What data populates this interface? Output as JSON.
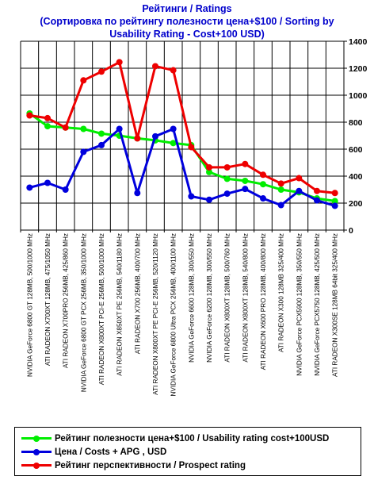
{
  "title": {
    "line1": "Рейтинги / Ratings",
    "line2": "(Сортировка по рейтингу полезности цена+$100 / Sorting by",
    "line3": "Usability Rating - Cost+100 USD)"
  },
  "chart_data": {
    "type": "line",
    "title": "Рейтинги / Ratings (Сортировка по рейтингу полезности цена+$100 / Sorting by Usability Rating - Cost+100 USD)",
    "ylim": [
      0,
      1400
    ],
    "yticks": [
      0,
      200,
      400,
      600,
      800,
      1000,
      1200,
      1400
    ],
    "y_axis_side": "right",
    "grid": true,
    "legend_position": "bottom",
    "categories": [
      "NVIDIA GeForce 6800 GT 128MB, 500/1000 MHz",
      "ATI RADEON X700XT 128MB, 475/1050 MHz",
      "ATI RADEON X700PRO 256MB, 425/860 MHz",
      "NVIDIA GeForce 6800 GT PCX 256MB, 350/1000 MHz",
      "ATI RADEON X800XT PCI-E 256MB, 500/1000 MHz",
      "ATI RADEON X850XT PE 256MB, 540/1180 MHz",
      "ATI RADEON X700 256MB, 400/700 MHz",
      "ATI RADEON X800XT PE PCI-E 256MB, 520/1120 MHz",
      "NVIDIA GeForce 6800 Ultra PCX 256MB, 400/1100 MHz",
      "NVIDIA GeForce 6600 128MB, 300/550 MHz",
      "NVIDIA GeForce 6200 128MB, 300/550 MHz",
      "ATI RADEON X800XT 128MB, 500/760 MHz",
      "ATI RADEON X800XT 128MB, 540/800 MHz",
      "ATI RADEON X600 PRO 128MB, 400/800 MHz",
      "ATI RADEON X300 128MB 325/400 MHz",
      "NVIDIA GeForce PCX5900 128MB, 350/550 MHz",
      "NVIDIA GeForce PCX5750 128MB, 425/500 MHz",
      "ATI RADEON X300SE 128MB 64bit 325/400 MHz"
    ],
    "series": [
      {
        "name": "Рейтинг полезности цена+$100 / Usability rating cost+100USD",
        "color": "#00ee00",
        "values": [
          865,
          770,
          760,
          750,
          715,
          700,
          680,
          665,
          645,
          630,
          430,
          380,
          365,
          340,
          300,
          280,
          235,
          215
        ]
      },
      {
        "name": "Цена / Costs + APG , USD",
        "color": "#0000dd",
        "values": [
          315,
          350,
          300,
          580,
          630,
          750,
          275,
          695,
          750,
          250,
          225,
          270,
          305,
          235,
          185,
          290,
          220,
          180
        ]
      },
      {
        "name": "Рейтинг перспективности / Prospect rating",
        "color": "#ee0000",
        "values": [
          850,
          830,
          760,
          1110,
          1175,
          1245,
          680,
          1215,
          1185,
          615,
          465,
          465,
          490,
          410,
          345,
          385,
          290,
          275
        ]
      }
    ]
  },
  "legend": {
    "items": [
      {
        "label": "Рейтинг полезности цена+$100 / Usability rating cost+100USD",
        "color": "#00ee00"
      },
      {
        "label": "Цена / Costs + APG , USD",
        "color": "#0000dd"
      },
      {
        "label": "Рейтинг перспективности / Prospect rating",
        "color": "#ee0000"
      }
    ]
  }
}
